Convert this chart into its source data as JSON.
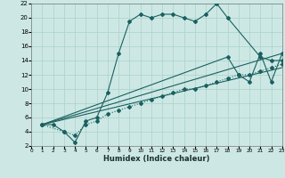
{
  "xlabel": "Humidex (Indice chaleur)",
  "ylabel": "",
  "bg_color": "#cde8e4",
  "grid_color": "#b0d4ce",
  "line_color": "#1a6060",
  "xlim": [
    0,
    23
  ],
  "ylim": [
    2,
    22
  ],
  "xticks": [
    0,
    1,
    2,
    3,
    4,
    5,
    6,
    7,
    8,
    9,
    10,
    11,
    12,
    13,
    14,
    15,
    16,
    17,
    18,
    19,
    20,
    21,
    22,
    23
  ],
  "yticks": [
    2,
    4,
    6,
    8,
    10,
    12,
    14,
    16,
    18,
    20,
    22
  ],
  "curve1_x": [
    1,
    2,
    3,
    4,
    5,
    6,
    7,
    8,
    9,
    10,
    11,
    12,
    13,
    14,
    15,
    16,
    17,
    18,
    21,
    22,
    23
  ],
  "curve1_y": [
    5,
    5,
    4,
    2.5,
    5.5,
    6,
    9.5,
    15,
    19.5,
    20.5,
    20,
    20.5,
    20.5,
    20,
    19.5,
    20.5,
    22,
    20,
    14.5,
    14,
    14
  ],
  "curve2_x": [
    1,
    3,
    4,
    5,
    6,
    7,
    8,
    9,
    10,
    11,
    12,
    13,
    14,
    15,
    16,
    17,
    18,
    19,
    20,
    21,
    22,
    23
  ],
  "curve2_y": [
    5,
    4,
    3.5,
    5,
    5.5,
    6.5,
    7,
    7.5,
    8,
    8.5,
    9,
    9.5,
    10,
    10,
    10.5,
    11,
    11.5,
    12,
    12,
    12.5,
    13,
    13.5
  ],
  "curve3_x": [
    1,
    23
  ],
  "curve3_y": [
    5,
    15
  ],
  "curve4_x": [
    1,
    23
  ],
  "curve4_y": [
    5,
    13
  ],
  "curve5_x": [
    1,
    18,
    19,
    20,
    21,
    22,
    23
  ],
  "curve5_y": [
    5,
    14.5,
    12,
    11,
    15,
    11,
    15
  ]
}
